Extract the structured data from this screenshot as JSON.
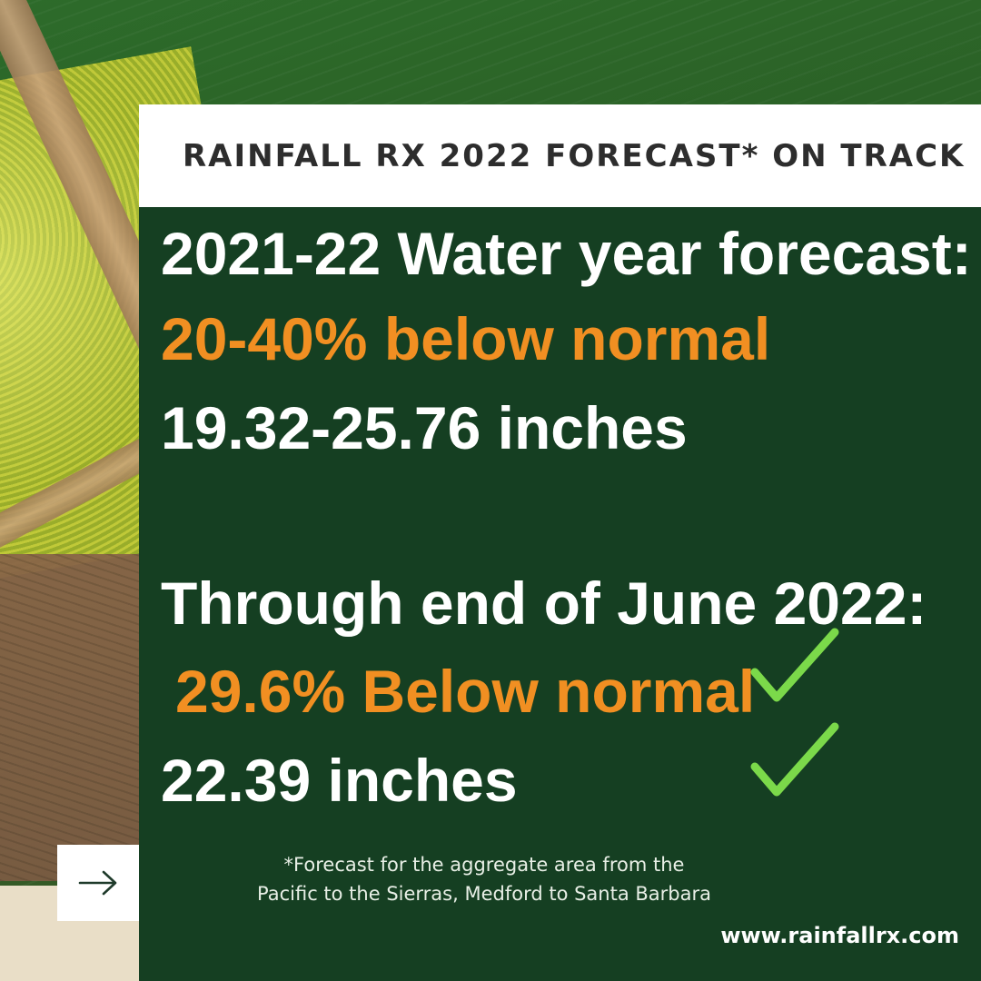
{
  "title": "RAINFALL RX 2022 FORECAST* ON TRACK",
  "forecast": {
    "heading": "2021-22 Water year forecast:",
    "percent": "20-40% below normal",
    "inches": "19.32-25.76 inches"
  },
  "actual": {
    "heading": "Through end of June 2022:",
    "percent": "29.6% Below normal",
    "inches": "22.39 inches"
  },
  "footnote": {
    "line1": "*Forecast for the aggregate area from the",
    "line2": "Pacific to the Sierras, Medford to Santa Barbara"
  },
  "website": "www.rainfallrx.com",
  "icons": {
    "check": "check-icon",
    "next": "arrow-right-icon"
  },
  "colors": {
    "panel": "#153f22",
    "accent_orange": "#f18f22",
    "check_green": "#7bd94a",
    "title_text": "#2d2d2d"
  }
}
